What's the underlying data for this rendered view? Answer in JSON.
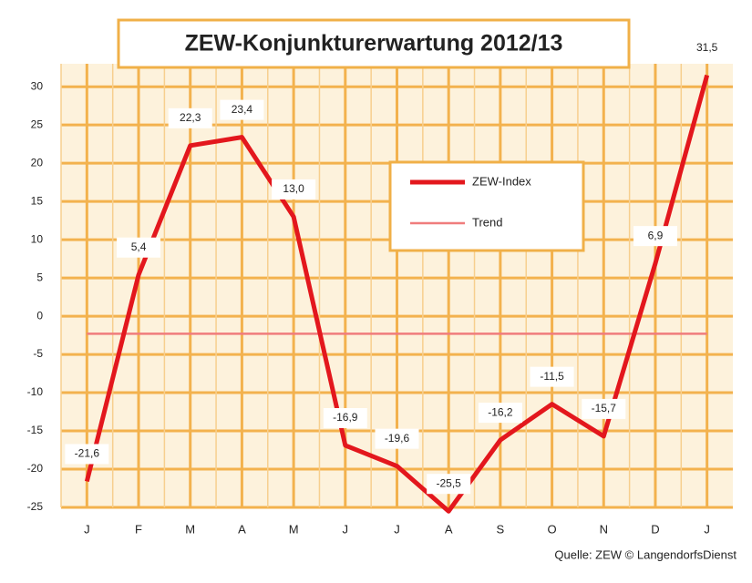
{
  "chart_data": {
    "type": "line",
    "title": "ZEW-Konjunkturerwartung 2012/13",
    "source": "Quelle: ZEW © LangendorfsDienst",
    "categories": [
      "J",
      "F",
      "M",
      "A",
      "M",
      "J",
      "J",
      "A",
      "S",
      "O",
      "N",
      "D",
      "J"
    ],
    "series": [
      {
        "name": "ZEW-Index",
        "color": "#e3171d",
        "values": [
          -21.6,
          5.4,
          22.3,
          23.4,
          13.0,
          -16.9,
          -19.6,
          -25.5,
          -16.2,
          -11.5,
          -15.7,
          6.9,
          31.5
        ],
        "value_labels": [
          "-21,6",
          "5,4",
          "22,3",
          "23,4",
          "13,0",
          "-16,9",
          "-19,6",
          "-25,5",
          "-16,2",
          "-11,5",
          "-15,7",
          "6,9",
          "31,5"
        ]
      },
      {
        "name": "Trend",
        "color": "#f07c7c",
        "values": [
          -2.3,
          -2.3,
          -2.3,
          -2.3,
          -2.3,
          -2.3,
          -2.3,
          -2.3,
          -2.3,
          -2.3,
          -2.3,
          -2.3,
          -2.3
        ]
      }
    ],
    "ylim": [
      -25,
      33
    ],
    "yticks": [
      30,
      25,
      20,
      15,
      10,
      5,
      0,
      -5,
      -10,
      -15,
      -20,
      -25
    ],
    "grid": true
  }
}
